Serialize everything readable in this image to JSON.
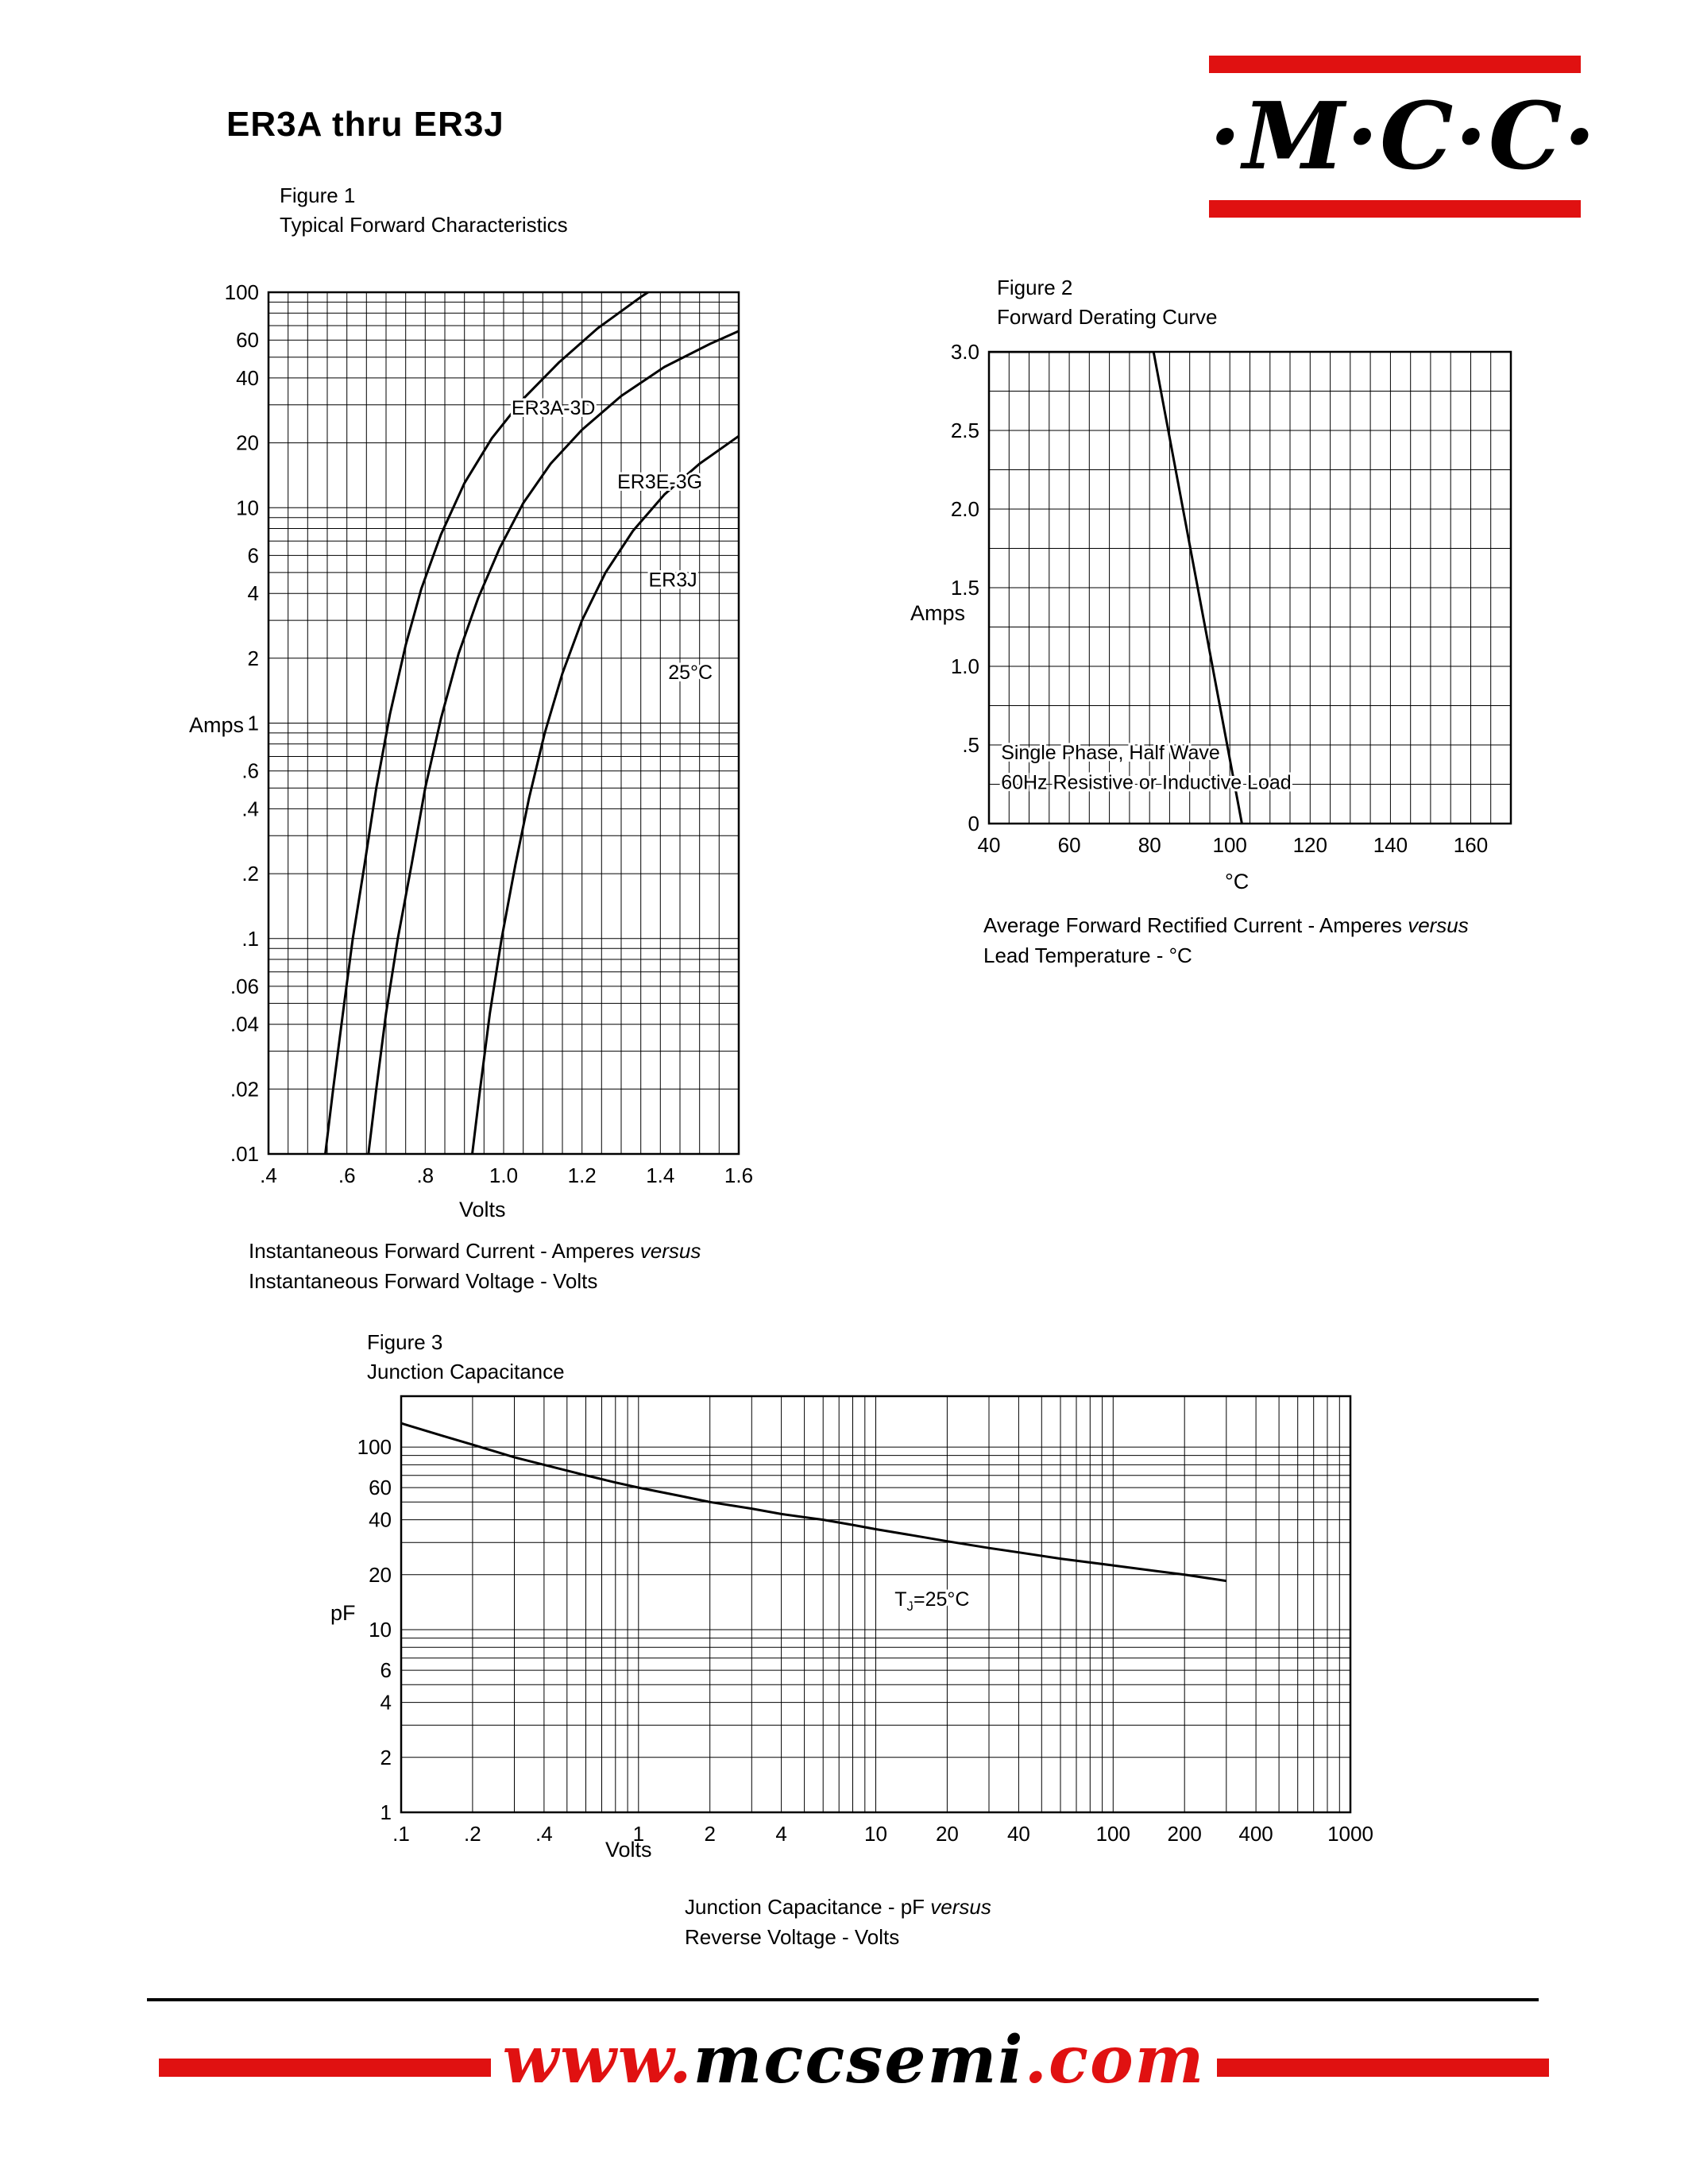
{
  "page": {
    "title": "ER3A thru ER3J",
    "logo_text": "·M·C·C·",
    "footer": {
      "www": "www.",
      "domain": "mccsemi",
      "tld": ".com"
    },
    "colors": {
      "red": "#e01111",
      "ink": "#000000"
    }
  },
  "chart_data": [
    {
      "id": "fig1",
      "type": "line",
      "figure_label": "Figure 1",
      "figure_subtitle": "Typical Forward Characteristics",
      "xlabel": "Volts",
      "ylabel": "Amps",
      "x_scale": "linear",
      "y_scale": "log",
      "xlim": [
        0.4,
        1.6
      ],
      "ylim": [
        0.01,
        100
      ],
      "x_minor_step": 0.05,
      "x_ticks": {
        "labels": [
          ".4",
          ".6",
          ".8",
          "1.0",
          "1.2",
          "1.4",
          "1.6"
        ],
        "values": [
          0.4,
          0.6,
          0.8,
          1.0,
          1.2,
          1.4,
          1.6
        ]
      },
      "y_ticks": {
        "labels": [
          "100",
          "60",
          "40",
          "20",
          "10",
          "6",
          "4",
          "2",
          "1",
          ".6",
          ".4",
          ".2",
          ".1",
          ".06",
          ".04",
          ".02",
          ".01"
        ],
        "values": [
          100,
          60,
          40,
          20,
          10,
          6,
          4,
          2,
          1,
          0.6,
          0.4,
          0.2,
          0.1,
          0.06,
          0.04,
          0.02,
          0.01
        ]
      },
      "grid": "on",
      "legend_position": "none",
      "series": [
        {
          "name": "ER3A-3D",
          "x": [
            0.545,
            0.565,
            0.59,
            0.615,
            0.645,
            0.675,
            0.71,
            0.75,
            0.79,
            0.84,
            0.9,
            0.97,
            1.05,
            1.14,
            1.24,
            1.35,
            1.42
          ],
          "y": [
            0.01,
            0.02,
            0.045,
            0.1,
            0.22,
            0.5,
            1.1,
            2.3,
            4.2,
            7.5,
            13,
            21,
            32,
            47,
            68,
            95,
            115
          ]
        },
        {
          "name": "ER3E-3G",
          "x": [
            0.655,
            0.675,
            0.7,
            0.73,
            0.765,
            0.8,
            0.84,
            0.885,
            0.935,
            0.99,
            1.05,
            1.12,
            1.2,
            1.3,
            1.41,
            1.53,
            1.6
          ],
          "y": [
            0.01,
            0.02,
            0.045,
            0.1,
            0.22,
            0.5,
            1.05,
            2.1,
            3.8,
            6.5,
            10.5,
            16,
            23,
            33,
            45,
            58,
            66
          ]
        },
        {
          "name": "ER3J",
          "x": [
            0.92,
            0.94,
            0.965,
            0.995,
            1.03,
            1.065,
            1.105,
            1.15,
            1.2,
            1.26,
            1.33,
            1.41,
            1.5,
            1.6
          ],
          "y": [
            0.01,
            0.02,
            0.045,
            0.1,
            0.22,
            0.45,
            0.9,
            1.7,
            3.0,
            5.0,
            7.8,
            11.5,
            16,
            21.5
          ]
        }
      ],
      "annotations": [
        {
          "text": "ER3A-3D",
          "x": 1.02,
          "y": 27
        },
        {
          "text": "ER3E-3G",
          "x": 1.29,
          "y": 12.3
        },
        {
          "text": "ER3J",
          "x": 1.37,
          "y": 4.3
        },
        {
          "text": "25°C",
          "x": 1.42,
          "y": 1.6
        }
      ],
      "caption": {
        "line1": "Instantaneous Forward Current - Amperes ",
        "line1_italic": "versus",
        "line2": "Instantaneous Forward Voltage - Volts"
      }
    },
    {
      "id": "fig2",
      "type": "line",
      "figure_label": "Figure 2",
      "figure_subtitle": "Forward Derating Curve",
      "xlabel": "°C",
      "ylabel": "Amps",
      "x_scale": "linear",
      "y_scale": "linear",
      "xlim": [
        40,
        170
      ],
      "ylim": [
        0,
        3
      ],
      "x_minor_step": 5,
      "y_minor_step": 0.25,
      "x_ticks": {
        "labels": [
          "40",
          "60",
          "80",
          "100",
          "120",
          "140",
          "160"
        ],
        "values": [
          40,
          60,
          80,
          100,
          120,
          140,
          160
        ]
      },
      "y_ticks": {
        "labels": [
          "3.0",
          "2.5",
          "2.0",
          "1.5",
          "1.0",
          ".5",
          "0"
        ],
        "values": [
          3,
          2.5,
          2,
          1.5,
          1,
          0.5,
          0
        ]
      },
      "grid": "on",
      "legend_position": "none",
      "series": [
        {
          "name": "derating",
          "x": [
            40,
            81,
            103
          ],
          "y": [
            3,
            3,
            0
          ]
        }
      ],
      "annotations": [
        {
          "text": "Single Phase, Half Wave",
          "x": 43,
          "y": 0.41
        },
        {
          "text": "60Hz Resistive or Inductive Load",
          "x": 43,
          "y": 0.22
        }
      ],
      "caption": {
        "line1": "Average Forward Rectified Current  -  Amperes ",
        "line1_italic": "versus",
        "line2": "Lead Temperature  - °C"
      }
    },
    {
      "id": "fig3",
      "type": "line",
      "figure_label": "Figure 3",
      "figure_subtitle": "Junction Capacitance",
      "xlabel": "Volts",
      "ylabel": "pF",
      "x_scale": "log",
      "y_scale": "log",
      "xlim": [
        0.1,
        1000
      ],
      "ylim": [
        1,
        190
      ],
      "x_ticks": {
        "labels": [
          ".1",
          ".2",
          ".4",
          "1",
          "2",
          "4",
          "10",
          "20",
          "40",
          "100",
          "200",
          "400",
          "1000"
        ],
        "values": [
          0.1,
          0.2,
          0.4,
          1,
          2,
          4,
          10,
          20,
          40,
          100,
          200,
          400,
          1000
        ]
      },
      "y_ticks": {
        "labels": [
          "100",
          "60",
          "40",
          "20",
          "10",
          "6",
          "4",
          "2",
          "1"
        ],
        "values": [
          100,
          60,
          40,
          20,
          10,
          6,
          4,
          2,
          1
        ]
      },
      "grid": "on",
      "legend_position": "none",
      "series": [
        {
          "name": "junction-capacitance",
          "x": [
            0.1,
            0.15,
            0.2,
            0.3,
            0.4,
            0.6,
            0.8,
            1,
            1.5,
            2,
            3,
            4,
            6,
            8,
            10,
            15,
            20,
            30,
            40,
            60,
            100,
            150,
            200,
            300
          ],
          "y": [
            135,
            115,
            103,
            88,
            80,
            70,
            64,
            60,
            54,
            50,
            46,
            43,
            40,
            37.5,
            35.5,
            32.5,
            30.5,
            28,
            26.5,
            24.5,
            22.5,
            21,
            20,
            18.5
          ]
        }
      ],
      "annotations": [
        {
          "pre": "T",
          "sub": "J",
          "post": "=25°C",
          "x": 12,
          "y": 13.5
        }
      ],
      "caption": {
        "line1": "Junction Capacitance - pF ",
        "line1_italic": "versus",
        "line2": "Reverse Voltage - Volts"
      }
    }
  ]
}
